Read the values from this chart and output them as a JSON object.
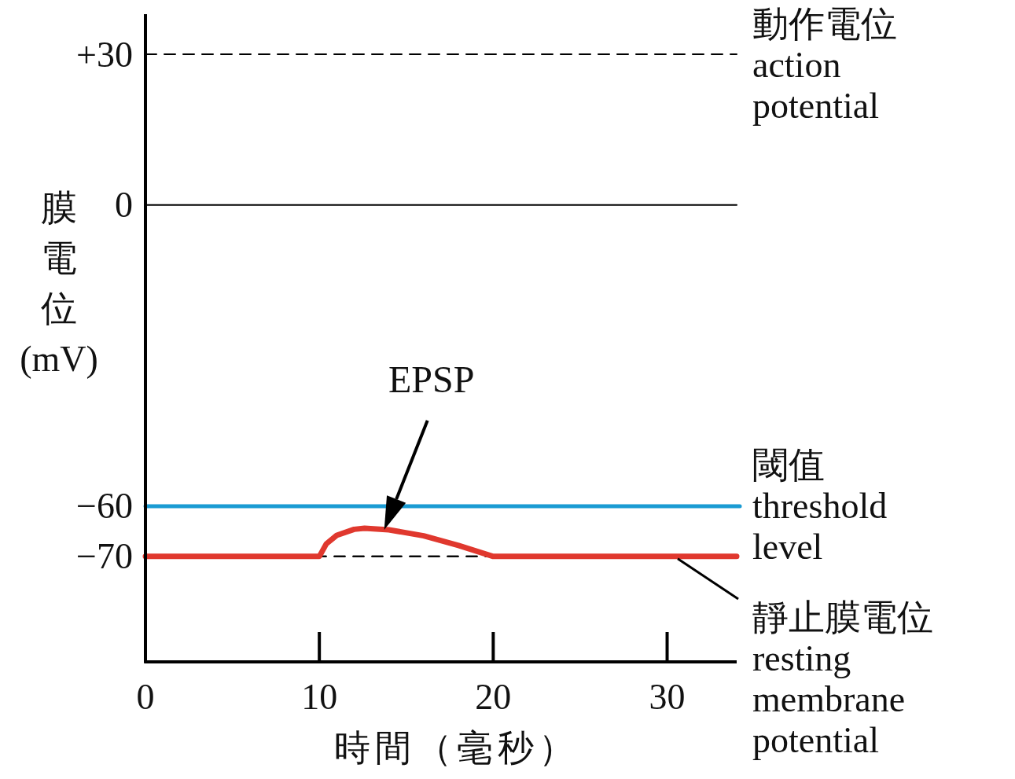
{
  "chart_data": {
    "type": "line",
    "xlabel": "時間（毫秒）",
    "ylabel": "膜電位(mV)",
    "x": [
      0,
      10,
      10.4,
      11,
      12,
      12.6,
      14,
      16,
      18,
      20,
      34
    ],
    "values": [
      -70,
      -70,
      -67.5,
      -65.8,
      -64.6,
      -64.4,
      -64.7,
      -65.9,
      -67.8,
      -70,
      -70
    ],
    "color": "#e0382e",
    "xlim": [
      0,
      34
    ],
    "xticks": [
      0,
      10,
      20,
      30
    ],
    "ylim": [
      -91,
      38
    ],
    "yticks": [
      {
        "value": 30,
        "label": "+30"
      },
      0,
      {
        "value": -60,
        "label": "−60"
      },
      {
        "value": -70,
        "label": "−70"
      }
    ],
    "ref_lines": [
      {
        "axis": "y",
        "value": 30,
        "label": "動作電位\naction\npotential",
        "color": "#000000",
        "line_style": "dashed"
      },
      {
        "axis": "y",
        "value": 0,
        "color": "#000000",
        "line_style": "solid"
      },
      {
        "axis": "y",
        "value": -60,
        "label": "閾值\nthreshold\nlevel",
        "color": "#1a9bd3",
        "line_style": "solid"
      },
      {
        "axis": "y",
        "value": -70,
        "label": "靜止膜電位\nresting\nmembrane\npotential",
        "color": "#000000",
        "line_style": "dashed"
      }
    ],
    "annotations": [
      "EPSP"
    ]
  }
}
